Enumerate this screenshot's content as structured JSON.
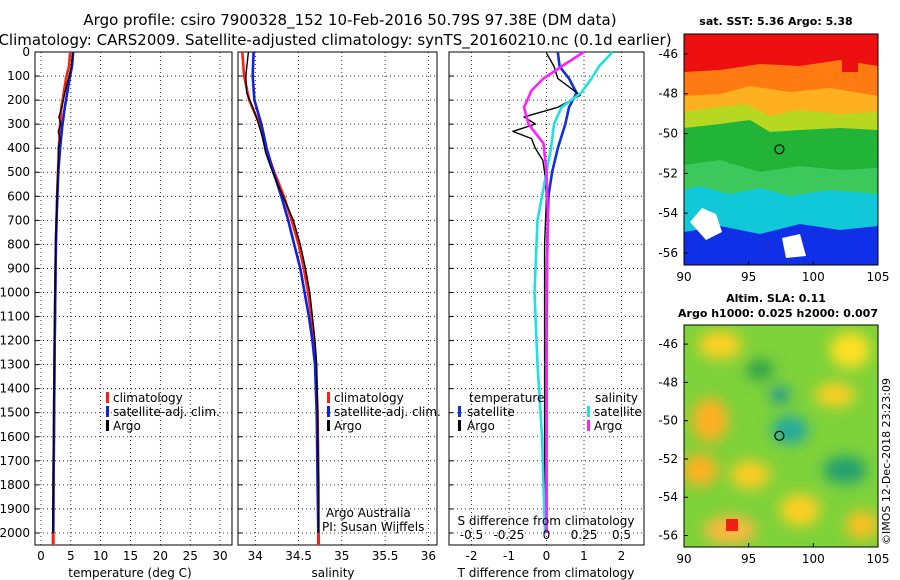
{
  "header": {
    "title_line1": "Argo profile: csiro 7900328_152 10-Feb-2016 50.79S 97.38E (DM data)",
    "title_line2": "Climatology: CARS2009. Satellite-adjusted climatology: synTS_20160210.nc (0.1d earlier)"
  },
  "colors": {
    "climatology": "#ff2010",
    "satellite_adj": "#1020e0",
    "argo": "#000000",
    "satellite_t": "#1030e0",
    "satellite_s": "#20e0e0",
    "argo_s": "#ff20ff"
  },
  "depth_axis": {
    "ticks": [
      "0",
      "100",
      "200",
      "300",
      "400",
      "500",
      "600",
      "700",
      "800",
      "900",
      "1000",
      "1100",
      "1200",
      "1300",
      "1400",
      "1500",
      "1600",
      "1700",
      "1800",
      "1900",
      "2000"
    ],
    "range": [
      0,
      2050
    ]
  },
  "chart_data": [
    {
      "type": "line",
      "name": "temperature-panel",
      "xlabel": "temperature (deg C)",
      "xlim": [
        -1,
        32
      ],
      "xticks": [
        "0",
        "5",
        "10",
        "15",
        "20",
        "25",
        "30"
      ],
      "ylim": [
        2050,
        0
      ],
      "legend": [
        {
          "label": "climatology",
          "color": "#ff2010"
        },
        {
          "label": "satellite-adj. clim.",
          "color": "#1020e0"
        },
        {
          "label": "Argo",
          "color": "#000000"
        }
      ],
      "series": [
        {
          "name": "climatology",
          "color": "#ff2010",
          "points": [
            [
              4.9,
              0
            ],
            [
              4.7,
              60
            ],
            [
              4.2,
              110
            ],
            [
              3.8,
              170
            ],
            [
              3.4,
              230
            ],
            [
              3.2,
              300
            ],
            [
              3.0,
              400
            ],
            [
              2.85,
              500
            ],
            [
              2.7,
              600
            ],
            [
              2.6,
              700
            ],
            [
              2.5,
              800
            ],
            [
              2.4,
              1000
            ],
            [
              2.3,
              1200
            ],
            [
              2.2,
              1500
            ],
            [
              2.1,
              1800
            ],
            [
              2.05,
              2050
            ]
          ]
        },
        {
          "name": "satellite-adj. clim.",
          "color": "#1020e0",
          "points": [
            [
              5.4,
              0
            ],
            [
              5.2,
              60
            ],
            [
              4.8,
              110
            ],
            [
              4.4,
              170
            ],
            [
              4.0,
              230
            ],
            [
              3.6,
              300
            ],
            [
              3.2,
              400
            ],
            [
              2.9,
              500
            ],
            [
              2.75,
              600
            ],
            [
              2.6,
              700
            ],
            [
              2.5,
              800
            ],
            [
              2.4,
              1000
            ],
            [
              2.3,
              1200
            ],
            [
              2.2,
              1500
            ],
            [
              2.1,
              1800
            ],
            [
              2.05,
              2050
            ]
          ]
        },
        {
          "name": "Argo",
          "color": "#000000",
          "points": [
            [
              5.3,
              5
            ],
            [
              5.1,
              60
            ],
            [
              4.6,
              110
            ],
            [
              4.0,
              170
            ],
            [
              3.5,
              230
            ],
            [
              3.0,
              270
            ],
            [
              3.3,
              300
            ],
            [
              2.9,
              330
            ],
            [
              3.2,
              360
            ],
            [
              2.9,
              400
            ],
            [
              2.95,
              450
            ],
            [
              2.8,
              500
            ],
            [
              2.7,
              600
            ],
            [
              2.6,
              700
            ],
            [
              2.45,
              800
            ],
            [
              2.35,
              1000
            ],
            [
              2.25,
              1200
            ],
            [
              2.15,
              1500
            ],
            [
              2.05,
              1800
            ],
            [
              2.0,
              2000
            ]
          ]
        }
      ]
    },
    {
      "type": "line",
      "name": "salinity-panel",
      "xlabel": "salinity",
      "xlim": [
        33.8,
        36.1
      ],
      "xticks": [
        "34",
        "34.5",
        "35",
        "35.5",
        "36"
      ],
      "ylim": [
        2050,
        0
      ],
      "legend": [
        {
          "label": "climatology",
          "color": "#ff2010"
        },
        {
          "label": "satellite-adj. clim.",
          "color": "#1020e0"
        },
        {
          "label": "Argo",
          "color": "#000000"
        }
      ],
      "annotation": [
        "Argo Australia",
        "PI: Susan Wijffels"
      ],
      "series": [
        {
          "name": "climatology",
          "color": "#ff2010",
          "points": [
            [
              33.85,
              0
            ],
            [
              33.87,
              100
            ],
            [
              33.93,
              200
            ],
            [
              34.05,
              300
            ],
            [
              34.12,
              400
            ],
            [
              34.22,
              500
            ],
            [
              34.33,
              600
            ],
            [
              34.42,
              700
            ],
            [
              34.5,
              800
            ],
            [
              34.56,
              900
            ],
            [
              34.61,
              1000
            ],
            [
              34.65,
              1100
            ],
            [
              34.68,
              1200
            ],
            [
              34.7,
              1300
            ],
            [
              34.72,
              1500
            ],
            [
              34.73,
              1800
            ],
            [
              34.73,
              2050
            ]
          ]
        },
        {
          "name": "satellite-adj. clim.",
          "color": "#1020e0",
          "points": [
            [
              33.98,
              0
            ],
            [
              33.97,
              100
            ],
            [
              33.99,
              200
            ],
            [
              34.07,
              300
            ],
            [
              34.13,
              400
            ],
            [
              34.21,
              500
            ],
            [
              34.3,
              600
            ],
            [
              34.38,
              700
            ],
            [
              34.45,
              800
            ],
            [
              34.52,
              900
            ],
            [
              34.57,
              1000
            ],
            [
              34.62,
              1100
            ],
            [
              34.66,
              1200
            ],
            [
              34.69,
              1300
            ],
            [
              34.71,
              1500
            ],
            [
              34.72,
              1800
            ],
            [
              34.73,
              2050
            ]
          ]
        },
        {
          "name": "Argo",
          "color": "#000000",
          "points": [
            [
              33.92,
              0
            ],
            [
              33.89,
              100
            ],
            [
              33.9,
              170
            ],
            [
              33.97,
              230
            ],
            [
              34.02,
              280
            ],
            [
              34.08,
              350
            ],
            [
              34.12,
              420
            ],
            [
              34.2,
              500
            ],
            [
              34.32,
              600
            ],
            [
              34.44,
              700
            ],
            [
              34.52,
              800
            ],
            [
              34.58,
              900
            ],
            [
              34.63,
              1000
            ],
            [
              34.66,
              1100
            ],
            [
              34.69,
              1200
            ],
            [
              34.71,
              1300
            ],
            [
              34.72,
              1500
            ],
            [
              34.73,
              1800
            ],
            [
              34.73,
              2000
            ]
          ]
        }
      ]
    },
    {
      "type": "line",
      "name": "difference-panel",
      "xlabel": "T difference from climatology",
      "xlabel_top": "S difference from climatology",
      "xlim": [
        -2.6,
        2.6
      ],
      "xticks_bottom": [
        "-2",
        "-1",
        "0",
        "1",
        "2"
      ],
      "xticks_top": [
        "-0.5",
        "-0.25",
        "0",
        "0.25",
        "0.5"
      ],
      "ylim": [
        2050,
        0
      ],
      "legend_temperature": {
        "title": "temperature",
        "items": [
          {
            "label": "satellite",
            "color": "#1030e0"
          },
          {
            "label": "Argo",
            "color": "#000000"
          }
        ]
      },
      "legend_salinity": {
        "title": "salinity",
        "items": [
          {
            "label": "satellite",
            "color": "#20e0e0"
          },
          {
            "label": "Argo",
            "color": "#ff20ff"
          }
        ]
      },
      "series": [
        {
          "name": "T satellite",
          "color": "#1030e0",
          "points": [
            [
              0.3,
              0
            ],
            [
              0.35,
              60
            ],
            [
              0.6,
              110
            ],
            [
              0.8,
              170
            ],
            [
              0.6,
              230
            ],
            [
              0.5,
              300
            ],
            [
              0.3,
              400
            ],
            [
              0.15,
              500
            ],
            [
              0.05,
              600
            ],
            [
              0.02,
              800
            ],
            [
              0.0,
              1200
            ],
            [
              0.0,
              2000
            ]
          ]
        },
        {
          "name": "T Argo",
          "color": "#000000",
          "points": [
            [
              0.0,
              5
            ],
            [
              0.2,
              60
            ],
            [
              0.3,
              110
            ],
            [
              0.9,
              180
            ],
            [
              0.3,
              230
            ],
            [
              -0.6,
              270
            ],
            [
              -0.3,
              300
            ],
            [
              -0.9,
              330
            ],
            [
              -0.4,
              360
            ],
            [
              -0.3,
              400
            ],
            [
              -0.1,
              450
            ],
            [
              -0.05,
              500
            ],
            [
              0.0,
              600
            ],
            [
              -0.05,
              800
            ],
            [
              -0.05,
              1200
            ],
            [
              -0.05,
              1500
            ],
            [
              -0.05,
              2000
            ]
          ]
        },
        {
          "name": "S satellite",
          "color": "#20e0e0",
          "points": [
            [
              0.44,
              0
            ],
            [
              0.35,
              60
            ],
            [
              0.3,
              110
            ],
            [
              0.23,
              170
            ],
            [
              0.1,
              230
            ],
            [
              0.05,
              300
            ],
            [
              0.03,
              400
            ],
            [
              0.0,
              500
            ],
            [
              -0.06,
              700
            ],
            [
              -0.08,
              1000
            ],
            [
              -0.06,
              1300
            ],
            [
              -0.03,
              1600
            ],
            [
              -0.01,
              2000
            ]
          ]
        },
        {
          "name": "S Argo",
          "color": "#ff20ff",
          "points": [
            [
              0.25,
              0
            ],
            [
              0.1,
              60
            ],
            [
              -0.02,
              110
            ],
            [
              -0.1,
              160
            ],
            [
              -0.15,
              230
            ],
            [
              -0.12,
              300
            ],
            [
              -0.02,
              380
            ],
            [
              0.0,
              500
            ],
            [
              0.01,
              700
            ],
            [
              0.0,
              1000
            ],
            [
              0.0,
              1300
            ],
            [
              0.0,
              1600
            ],
            [
              0.0,
              2000
            ]
          ]
        }
      ]
    }
  ],
  "maps": {
    "sst": {
      "title": "sat. SST: 5.36 Argo: 5.38",
      "lat_ticks": [
        "-46",
        "-48",
        "-50",
        "-52",
        "-54",
        "-56"
      ],
      "lon_ticks": [
        "90",
        "95",
        "100",
        "105"
      ]
    },
    "sla": {
      "title_line1": "Altim. SLA: 0.11",
      "title_line2": "Argo h1000: 0.025 h2000: 0.007",
      "lat_ticks": [
        "-46",
        "-48",
        "-50",
        "-52",
        "-54",
        "-56"
      ],
      "lon_ticks": [
        "90",
        "95",
        "100",
        "105"
      ]
    },
    "credit": "©IMOS 12-Dec-2018 23:23:09"
  }
}
